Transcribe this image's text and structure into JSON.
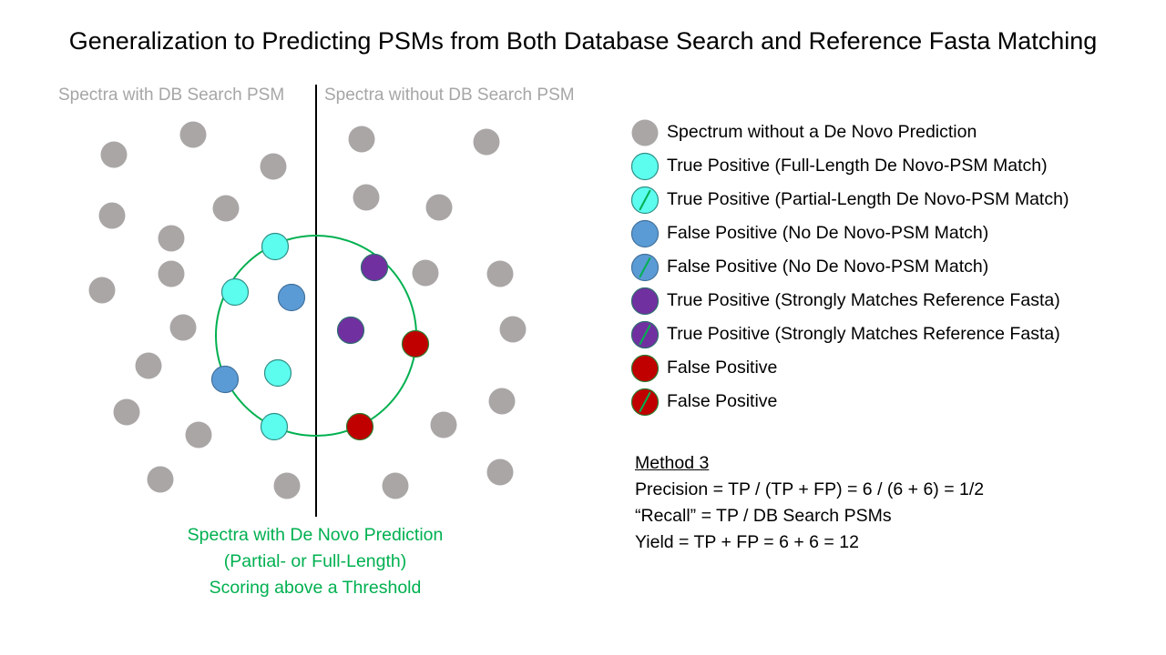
{
  "title": "Generalization to Predicting PSMs from Both Database Search and Reference Fasta Matching",
  "regions": {
    "left_label": "Spectra with DB Search PSM",
    "right_label": "Spectra without DB Search PSM"
  },
  "colors": {
    "gray": "#aaa6a6",
    "cyan": "#5cfcef",
    "blue": "#5b9bd5",
    "purple": "#7030a0",
    "red": "#c00000",
    "green": "#00b050"
  },
  "legend": [
    {
      "type": "gray",
      "slash": false,
      "label": "Spectrum without a De Novo Prediction"
    },
    {
      "type": "cyan",
      "slash": false,
      "label": "True Positive (Full-Length De Novo-PSM Match)"
    },
    {
      "type": "cyan",
      "slash": true,
      "label": "True Positive (Partial-Length De Novo-PSM Match)"
    },
    {
      "type": "blue",
      "slash": false,
      "label": "False Positive (No De Novo-PSM Match)"
    },
    {
      "type": "blue",
      "slash": true,
      "label": "False Positive (No De Novo-PSM Match)"
    },
    {
      "type": "purple",
      "slash": false,
      "label": "True Positive (Strongly Matches Reference Fasta)"
    },
    {
      "type": "purple",
      "slash": true,
      "label": "True Positive (Strongly Matches Reference Fasta)"
    },
    {
      "type": "red",
      "slash": false,
      "label": "False Positive"
    },
    {
      "type": "red",
      "slash": true,
      "label": "False Positive"
    }
  ],
  "caption": [
    "Spectra with De Novo Prediction",
    "(Partial- or Full-Length)",
    "Scoring above a Threshold"
  ],
  "method": {
    "heading": "Method 3",
    "precision": "Precision = TP / (TP + FP) = 6 / (6 + 6) = 1/2",
    "recall": "“Recall” = TP / DB Search PSMs",
    "yield": "Yield = TP + FP = 6 + 6 = 12"
  }
}
